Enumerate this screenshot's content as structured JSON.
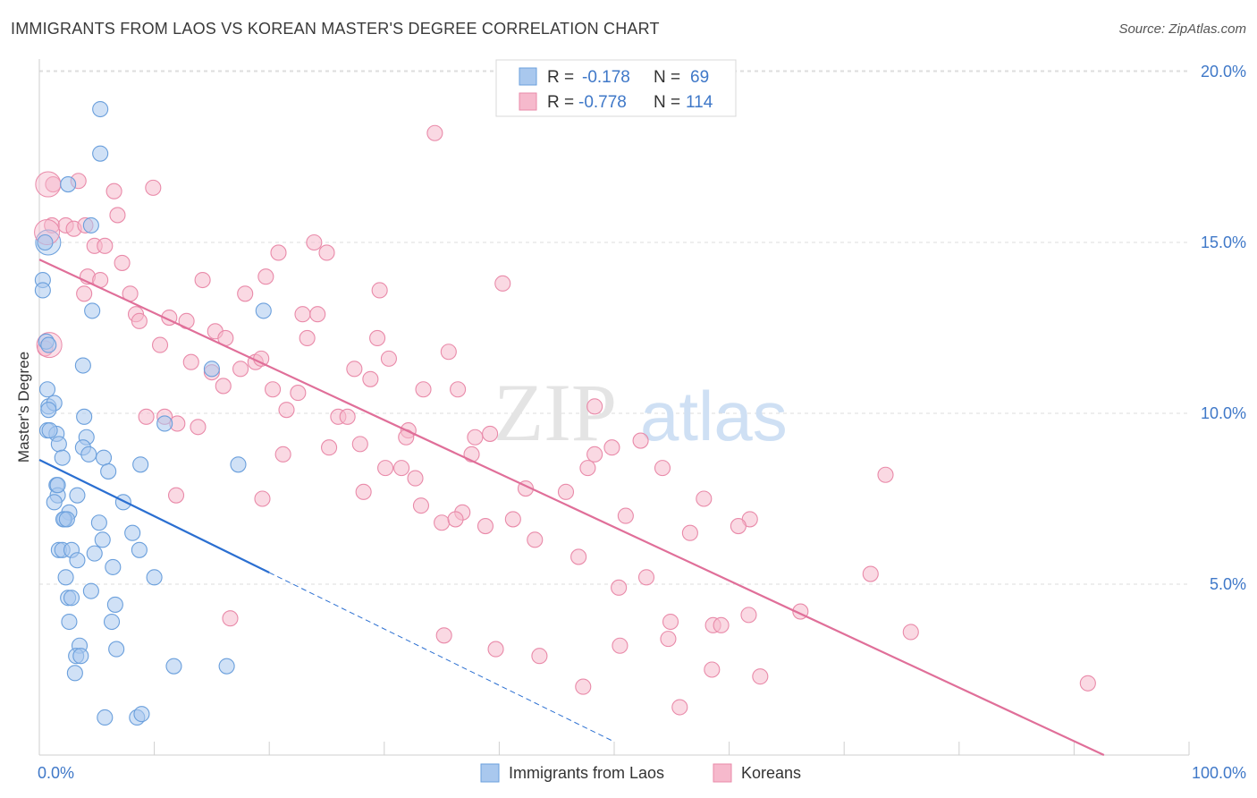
{
  "title": "IMMIGRANTS FROM LAOS VS KOREAN MASTER'S DEGREE CORRELATION CHART",
  "source": "Source: ZipAtlas.com",
  "watermark": {
    "zip": "ZIP",
    "atlas": "atlas"
  },
  "colors": {
    "laos_fill": "#a9c8ee",
    "laos_stroke": "#6a9fdc",
    "laos_line": "#2b6fd1",
    "korean_fill": "#f6b9cc",
    "korean_stroke": "#e98aa9",
    "korean_line": "#e06f99",
    "axis_text": "#3f78c8",
    "grid": "#dddddd"
  },
  "legend": {
    "rows": [
      {
        "r_label": "R =",
        "r_value": "-0.178",
        "n_label": "N =",
        "n_value": "69"
      },
      {
        "r_label": "R =",
        "r_value": "-0.778",
        "n_label": "N =",
        "n_value": "114"
      }
    ]
  },
  "chart_data": {
    "type": "scatter",
    "xlabel": "",
    "ylabel": "Master's Degree",
    "xlim": [
      0,
      100
    ],
    "ylim": [
      0,
      20
    ],
    "x_tick_labels": [
      "0.0%",
      "100.0%"
    ],
    "y_ticks": [
      5,
      10,
      15,
      20
    ],
    "y_tick_labels": [
      "5.0%",
      "10.0%",
      "15.0%",
      "20.0%"
    ],
    "grid": true,
    "legend_position": "top-center",
    "series": [
      {
        "name": "Immigrants from Laos",
        "points": [
          [
            5.3,
            18.9
          ],
          [
            5.3,
            17.6
          ],
          [
            0.5,
            15.0
          ],
          [
            4.5,
            15.5
          ],
          [
            2.5,
            16.7
          ],
          [
            0.3,
            13.9
          ],
          [
            0.3,
            13.6
          ],
          [
            4.6,
            13.0
          ],
          [
            19.5,
            13.0
          ],
          [
            0.6,
            12.1
          ],
          [
            0.8,
            12.0
          ],
          [
            3.8,
            11.4
          ],
          [
            15.0,
            11.3
          ],
          [
            0.7,
            10.7
          ],
          [
            0.8,
            10.2
          ],
          [
            1.3,
            10.3
          ],
          [
            0.8,
            10.1
          ],
          [
            3.9,
            9.9
          ],
          [
            10.9,
            9.7
          ],
          [
            0.7,
            9.5
          ],
          [
            1.5,
            9.4
          ],
          [
            4.1,
            9.3
          ],
          [
            1.7,
            9.1
          ],
          [
            3.8,
            9.0
          ],
          [
            2.0,
            8.7
          ],
          [
            4.3,
            8.8
          ],
          [
            5.6,
            8.7
          ],
          [
            8.8,
            8.5
          ],
          [
            17.3,
            8.5
          ],
          [
            6.0,
            8.3
          ],
          [
            1.5,
            7.9
          ],
          [
            1.6,
            7.6
          ],
          [
            3.3,
            7.6
          ],
          [
            7.3,
            7.4
          ],
          [
            1.3,
            7.4
          ],
          [
            2.6,
            7.1
          ],
          [
            2.2,
            6.9
          ],
          [
            2.1,
            6.9
          ],
          [
            5.2,
            6.8
          ],
          [
            8.1,
            6.5
          ],
          [
            5.5,
            6.3
          ],
          [
            1.7,
            6.0
          ],
          [
            2.0,
            6.0
          ],
          [
            2.8,
            6.0
          ],
          [
            8.7,
            6.0
          ],
          [
            4.8,
            5.9
          ],
          [
            3.3,
            5.7
          ],
          [
            6.4,
            5.5
          ],
          [
            2.3,
            5.2
          ],
          [
            10.0,
            5.2
          ],
          [
            4.5,
            4.8
          ],
          [
            2.5,
            4.6
          ],
          [
            2.8,
            4.6
          ],
          [
            6.6,
            4.4
          ],
          [
            2.6,
            3.9
          ],
          [
            6.3,
            3.9
          ],
          [
            3.5,
            3.2
          ],
          [
            6.7,
            3.1
          ],
          [
            3.2,
            2.9
          ],
          [
            3.6,
            2.9
          ],
          [
            11.7,
            2.6
          ],
          [
            16.3,
            2.6
          ],
          [
            3.1,
            2.4
          ],
          [
            5.7,
            1.1
          ],
          [
            8.5,
            1.1
          ],
          [
            8.9,
            1.2
          ],
          [
            1.6,
            7.9
          ],
          [
            2.4,
            6.9
          ],
          [
            0.9,
            9.5
          ]
        ]
      },
      {
        "name": "Koreans",
        "points": [
          [
            1.2,
            16.7
          ],
          [
            3.4,
            16.8
          ],
          [
            6.5,
            16.5
          ],
          [
            9.9,
            16.6
          ],
          [
            34.4,
            18.2
          ],
          [
            6.8,
            15.8
          ],
          [
            1.1,
            15.5
          ],
          [
            2.3,
            15.5
          ],
          [
            3.0,
            15.4
          ],
          [
            4.0,
            15.5
          ],
          [
            4.8,
            14.9
          ],
          [
            5.7,
            14.9
          ],
          [
            23.9,
            15.0
          ],
          [
            20.8,
            14.7
          ],
          [
            25.0,
            14.7
          ],
          [
            7.2,
            14.4
          ],
          [
            4.2,
            14.0
          ],
          [
            5.3,
            13.9
          ],
          [
            14.2,
            13.9
          ],
          [
            19.7,
            14.0
          ],
          [
            40.3,
            13.8
          ],
          [
            3.9,
            13.5
          ],
          [
            7.9,
            13.5
          ],
          [
            17.9,
            13.5
          ],
          [
            29.6,
            13.6
          ],
          [
            8.4,
            12.9
          ],
          [
            8.7,
            12.7
          ],
          [
            11.3,
            12.8
          ],
          [
            12.8,
            12.7
          ],
          [
            22.9,
            12.9
          ],
          [
            24.2,
            12.9
          ],
          [
            15.3,
            12.4
          ],
          [
            16.2,
            12.2
          ],
          [
            23.3,
            12.2
          ],
          [
            29.4,
            12.2
          ],
          [
            0.5,
            11.9
          ],
          [
            10.5,
            12.0
          ],
          [
            13.2,
            11.5
          ],
          [
            18.8,
            11.5
          ],
          [
            19.3,
            11.6
          ],
          [
            30.4,
            11.6
          ],
          [
            15.0,
            11.2
          ],
          [
            17.5,
            11.3
          ],
          [
            27.4,
            11.3
          ],
          [
            16.0,
            10.8
          ],
          [
            28.8,
            11.0
          ],
          [
            20.3,
            10.7
          ],
          [
            22.5,
            10.6
          ],
          [
            33.4,
            10.7
          ],
          [
            36.4,
            10.7
          ],
          [
            21.5,
            10.1
          ],
          [
            26.0,
            9.9
          ],
          [
            26.8,
            9.9
          ],
          [
            9.3,
            9.9
          ],
          [
            10.9,
            9.9
          ],
          [
            12.0,
            9.7
          ],
          [
            13.8,
            9.6
          ],
          [
            32.1,
            9.5
          ],
          [
            48.3,
            10.2
          ],
          [
            31.9,
            9.3
          ],
          [
            39.2,
            9.4
          ],
          [
            37.9,
            9.3
          ],
          [
            25.2,
            9.0
          ],
          [
            27.9,
            9.1
          ],
          [
            49.8,
            9.0
          ],
          [
            52.3,
            9.2
          ],
          [
            21.2,
            8.8
          ],
          [
            37.6,
            8.8
          ],
          [
            48.3,
            8.8
          ],
          [
            30.1,
            8.4
          ],
          [
            31.5,
            8.4
          ],
          [
            47.7,
            8.4
          ],
          [
            54.2,
            8.4
          ],
          [
            73.6,
            8.2
          ],
          [
            32.7,
            8.1
          ],
          [
            42.3,
            7.8
          ],
          [
            28.2,
            7.7
          ],
          [
            45.8,
            7.7
          ],
          [
            11.9,
            7.6
          ],
          [
            19.4,
            7.5
          ],
          [
            57.8,
            7.5
          ],
          [
            33.2,
            7.3
          ],
          [
            36.8,
            7.1
          ],
          [
            35.0,
            6.8
          ],
          [
            36.2,
            6.9
          ],
          [
            38.8,
            6.7
          ],
          [
            41.2,
            6.9
          ],
          [
            51.0,
            7.0
          ],
          [
            61.8,
            6.9
          ],
          [
            60.8,
            6.7
          ],
          [
            56.6,
            6.5
          ],
          [
            43.1,
            6.3
          ],
          [
            46.9,
            5.8
          ],
          [
            52.8,
            5.2
          ],
          [
            72.3,
            5.3
          ],
          [
            50.4,
            4.9
          ],
          [
            61.7,
            4.1
          ],
          [
            66.2,
            4.2
          ],
          [
            16.6,
            4.0
          ],
          [
            54.9,
            3.9
          ],
          [
            58.6,
            3.8
          ],
          [
            59.3,
            3.8
          ],
          [
            75.8,
            3.6
          ],
          [
            35.2,
            3.5
          ],
          [
            54.7,
            3.4
          ],
          [
            50.5,
            3.2
          ],
          [
            39.7,
            3.1
          ],
          [
            43.5,
            2.9
          ],
          [
            58.5,
            2.5
          ],
          [
            62.7,
            2.3
          ],
          [
            47.3,
            2.0
          ],
          [
            91.2,
            2.1
          ],
          [
            55.7,
            1.4
          ],
          [
            35.6,
            11.8
          ]
        ]
      }
    ],
    "trend_lines": [
      {
        "series": "Immigrants from Laos",
        "x0": 0,
        "y0": 8.64,
        "x1": 20,
        "y1": 5.34,
        "dashed_to_x": 50
      },
      {
        "series": "Koreans",
        "x0": 0,
        "y0": 14.5,
        "x1": 92.6,
        "y1": 0
      }
    ]
  }
}
